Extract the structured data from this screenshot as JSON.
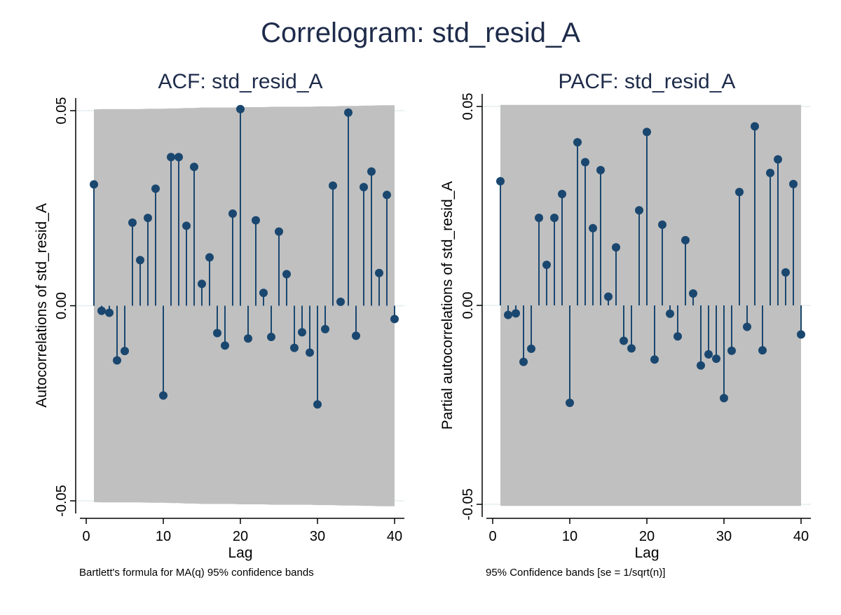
{
  "title": "Correlogram: std_resid_A",
  "colors": {
    "band": "#c0c0c0",
    "marker": "#1a476f",
    "title": "#1e2b4a",
    "text": "#000000",
    "grid": "#eaf2f3",
    "axis": "#000000"
  },
  "chart_data": [
    {
      "type": "scatter",
      "subtype": "stem",
      "title": "ACF: std_resid_A",
      "xlabel": "Lag",
      "ylabel": "Autocorrelations of std_resid_A",
      "note": "Bartlett's formula for MA(q) 95% confidence bands",
      "xlim": [
        0,
        40
      ],
      "ylim": [
        -0.05,
        0.05
      ],
      "xticks": [
        0,
        10,
        20,
        30,
        40
      ],
      "yticks": [
        -0.05,
        0.0,
        0.05
      ],
      "ytick_labels": [
        "-0.05",
        "0.00",
        "0.05"
      ],
      "grid": true,
      "lags": [
        1,
        2,
        3,
        4,
        5,
        6,
        7,
        8,
        9,
        10,
        11,
        12,
        13,
        14,
        15,
        16,
        17,
        18,
        19,
        20,
        21,
        22,
        23,
        24,
        25,
        26,
        27,
        28,
        29,
        30,
        31,
        32,
        33,
        34,
        35,
        36,
        37,
        38,
        39,
        40
      ],
      "values": [
        0.0311,
        -0.0013,
        -0.0018,
        -0.014,
        -0.0116,
        0.0213,
        0.0117,
        0.0225,
        0.03,
        -0.023,
        0.0381,
        0.0381,
        0.0205,
        0.0356,
        0.0056,
        0.0124,
        -0.007,
        -0.0102,
        0.0236,
        0.0504,
        -0.0084,
        0.0219,
        0.0033,
        -0.008,
        0.019,
        0.0081,
        -0.0108,
        -0.0068,
        -0.012,
        -0.0253,
        -0.006,
        0.0308,
        0.001,
        0.0495,
        -0.0077,
        0.0304,
        0.0344,
        0.0084,
        0.0284,
        -0.0034
      ],
      "band_upper": [
        0.0503,
        0.0504,
        0.0504,
        0.0504,
        0.0504,
        0.0504,
        0.0504,
        0.0505,
        0.0505,
        0.0505,
        0.0506,
        0.0506,
        0.0507,
        0.0507,
        0.0508,
        0.0508,
        0.0508,
        0.0508,
        0.0508,
        0.0509,
        0.0509,
        0.0509,
        0.0509,
        0.051,
        0.051,
        0.051,
        0.051,
        0.051,
        0.051,
        0.0511,
        0.0511,
        0.0511,
        0.0512,
        0.0512,
        0.0512,
        0.0513,
        0.0513,
        0.0514,
        0.0514,
        0.0514
      ],
      "band_lower": [
        -0.0503,
        -0.0504,
        -0.0504,
        -0.0504,
        -0.0504,
        -0.0504,
        -0.0504,
        -0.0505,
        -0.0505,
        -0.0505,
        -0.0506,
        -0.0506,
        -0.0507,
        -0.0507,
        -0.0508,
        -0.0508,
        -0.0508,
        -0.0508,
        -0.0508,
        -0.0509,
        -0.0509,
        -0.0509,
        -0.0509,
        -0.051,
        -0.051,
        -0.051,
        -0.051,
        -0.051,
        -0.051,
        -0.0511,
        -0.0511,
        -0.0511,
        -0.0512,
        -0.0512,
        -0.0512,
        -0.0513,
        -0.0513,
        -0.0514,
        -0.0514,
        -0.0514
      ]
    },
    {
      "type": "scatter",
      "subtype": "stem",
      "title": "PACF: std_resid_A",
      "xlabel": "Lag",
      "ylabel": "Partial autocorrelations of std_resid_A",
      "note": "95% Confidence bands [se = 1/sqrt(n)]",
      "xlim": [
        0,
        40
      ],
      "ylim": [
        -0.05,
        0.05
      ],
      "xticks": [
        0,
        10,
        20,
        30,
        40
      ],
      "yticks": [
        -0.05,
        0.0,
        0.05
      ],
      "ytick_labels": [
        "-0.05",
        "0.00",
        "0.05"
      ],
      "grid": true,
      "lags": [
        1,
        2,
        3,
        4,
        5,
        6,
        7,
        8,
        9,
        10,
        11,
        12,
        13,
        14,
        15,
        16,
        17,
        18,
        19,
        20,
        21,
        22,
        23,
        24,
        25,
        26,
        27,
        28,
        29,
        30,
        31,
        32,
        33,
        34,
        35,
        36,
        37,
        38,
        39,
        40
      ],
      "values": [
        0.0312,
        -0.0024,
        -0.002,
        -0.0142,
        -0.0109,
        0.022,
        0.0102,
        0.022,
        0.028,
        -0.0245,
        0.041,
        0.036,
        0.0194,
        0.034,
        0.0022,
        0.0146,
        -0.0089,
        -0.0108,
        0.0239,
        0.0436,
        -0.0136,
        0.0203,
        -0.0021,
        -0.0078,
        0.0164,
        0.003,
        -0.0151,
        -0.0123,
        -0.0134,
        -0.0233,
        -0.0114,
        0.0285,
        -0.0054,
        0.045,
        -0.0113,
        0.0333,
        0.0367,
        0.0083,
        0.0305,
        -0.0073
      ],
      "band_upper": 0.0504,
      "band_lower": -0.0504
    }
  ]
}
